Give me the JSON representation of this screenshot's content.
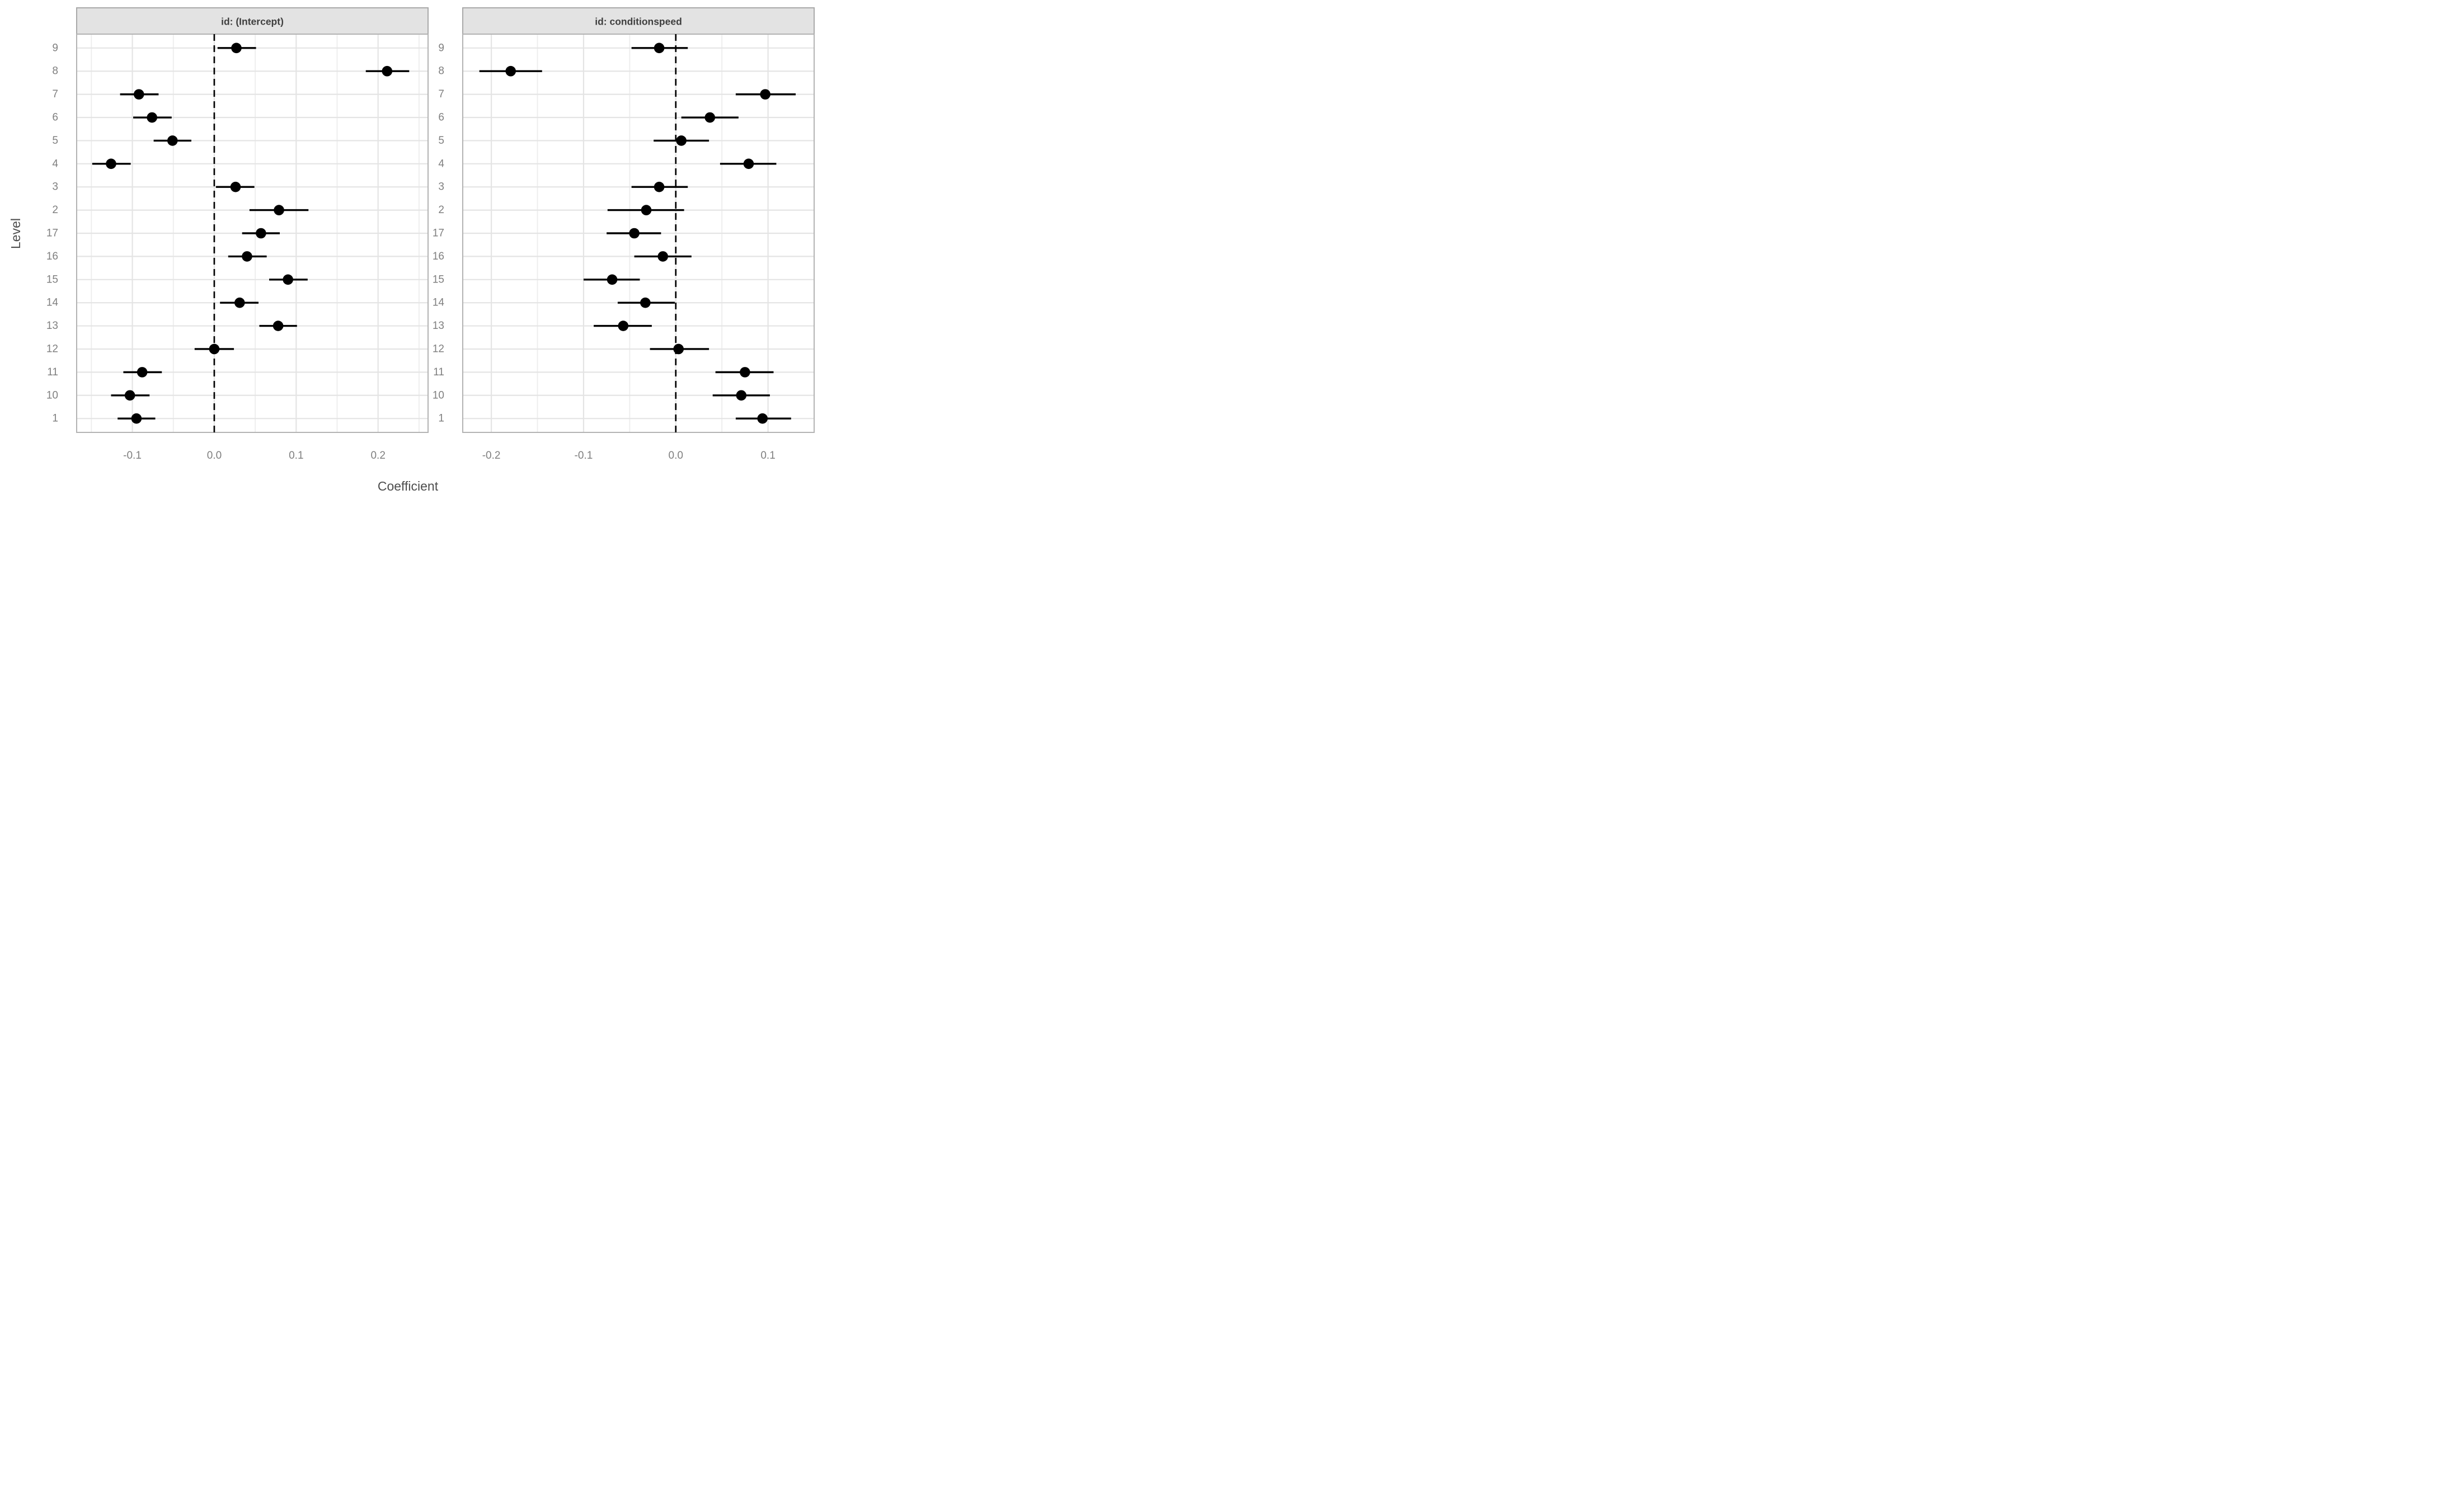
{
  "figure": {
    "xlabel": "Coefficient",
    "ylabel": "Level",
    "colors": {
      "background": "#ffffff",
      "strip_bg": "#e3e3e3",
      "strip_border": "#a9a9a9",
      "strip_text": "#3f3f3f",
      "panel_border": "#b3b3b3",
      "grid_major": "#e4e4e4",
      "grid_minor": "#ededed",
      "data": "#000000",
      "tick_text": "#7f7f7f",
      "axis_title": "#4d4d4d"
    },
    "chart_data": [
      {
        "type": "scatter",
        "title": "id: (Intercept)",
        "y_categories": [
          "9",
          "8",
          "7",
          "6",
          "5",
          "4",
          "3",
          "2",
          "17",
          "16",
          "15",
          "14",
          "13",
          "12",
          "11",
          "10",
          "1"
        ],
        "x_tick_labels": [
          "-0.1",
          "0.0",
          "0.1",
          "0.2"
        ],
        "x_ticks": [
          -0.1,
          0.0,
          0.1,
          0.2
        ],
        "x_minor": [
          -0.15,
          -0.05,
          0.05,
          0.15,
          0.25
        ],
        "xlim": [
          -0.168,
          0.261
        ],
        "zero_line": 0,
        "points": [
          {
            "level": "9",
            "est": 0.027,
            "lo": 0.004,
            "hi": 0.051
          },
          {
            "level": "8",
            "est": 0.211,
            "lo": 0.185,
            "hi": 0.238
          },
          {
            "level": "7",
            "est": -0.092,
            "lo": -0.115,
            "hi": -0.068
          },
          {
            "level": "6",
            "est": -0.076,
            "lo": -0.099,
            "hi": -0.052
          },
          {
            "level": "5",
            "est": -0.051,
            "lo": -0.074,
            "hi": -0.028
          },
          {
            "level": "4",
            "est": -0.126,
            "lo": -0.149,
            "hi": -0.102
          },
          {
            "level": "3",
            "est": 0.026,
            "lo": 0.002,
            "hi": 0.049
          },
          {
            "level": "2",
            "est": 0.079,
            "lo": 0.043,
            "hi": 0.115
          },
          {
            "level": "17",
            "est": 0.057,
            "lo": 0.034,
            "hi": 0.08
          },
          {
            "level": "16",
            "est": 0.04,
            "lo": 0.017,
            "hi": 0.064
          },
          {
            "level": "15",
            "est": 0.09,
            "lo": 0.067,
            "hi": 0.114
          },
          {
            "level": "14",
            "est": 0.031,
            "lo": 0.007,
            "hi": 0.054
          },
          {
            "level": "13",
            "est": 0.078,
            "lo": 0.055,
            "hi": 0.101
          },
          {
            "level": "12",
            "est": 0.0,
            "lo": -0.024,
            "hi": 0.024
          },
          {
            "level": "11",
            "est": -0.088,
            "lo": -0.111,
            "hi": -0.064
          },
          {
            "level": "10",
            "est": -0.103,
            "lo": -0.126,
            "hi": -0.079
          },
          {
            "level": "1",
            "est": -0.095,
            "lo": -0.118,
            "hi": -0.072
          }
        ]
      },
      {
        "type": "scatter",
        "title": "id: conditionspeed",
        "y_categories": [
          "9",
          "8",
          "7",
          "6",
          "5",
          "4",
          "3",
          "2",
          "17",
          "16",
          "15",
          "14",
          "13",
          "12",
          "11",
          "10",
          "1"
        ],
        "x_tick_labels": [
          "-0.2",
          "-0.1",
          "0.0",
          "0.1"
        ],
        "x_ticks": [
          -0.2,
          -0.1,
          0.0,
          0.1
        ],
        "x_minor": [
          -0.15,
          -0.05,
          0.05
        ],
        "xlim": [
          -0.231,
          0.15
        ],
        "zero_line": 0,
        "points": [
          {
            "level": "9",
            "est": -0.018,
            "lo": -0.048,
            "hi": 0.013
          },
          {
            "level": "8",
            "est": -0.179,
            "lo": -0.213,
            "hi": -0.145
          },
          {
            "level": "7",
            "est": 0.097,
            "lo": 0.065,
            "hi": 0.13
          },
          {
            "level": "6",
            "est": 0.037,
            "lo": 0.006,
            "hi": 0.068
          },
          {
            "level": "5",
            "est": 0.006,
            "lo": -0.024,
            "hi": 0.036
          },
          {
            "level": "4",
            "est": 0.079,
            "lo": 0.048,
            "hi": 0.109
          },
          {
            "level": "3",
            "est": -0.018,
            "lo": -0.048,
            "hi": 0.013
          },
          {
            "level": "2",
            "est": -0.032,
            "lo": -0.074,
            "hi": 0.009
          },
          {
            "level": "17",
            "est": -0.045,
            "lo": -0.075,
            "hi": -0.016
          },
          {
            "level": "16",
            "est": -0.014,
            "lo": -0.045,
            "hi": 0.017
          },
          {
            "level": "15",
            "est": -0.069,
            "lo": -0.1,
            "hi": -0.039
          },
          {
            "level": "14",
            "est": -0.033,
            "lo": -0.063,
            "hi": -0.001
          },
          {
            "level": "13",
            "est": -0.057,
            "lo": -0.089,
            "hi": -0.026
          },
          {
            "level": "12",
            "est": 0.003,
            "lo": -0.028,
            "hi": 0.036
          },
          {
            "level": "11",
            "est": 0.075,
            "lo": 0.043,
            "hi": 0.106
          },
          {
            "level": "10",
            "est": 0.071,
            "lo": 0.04,
            "hi": 0.102
          },
          {
            "level": "1",
            "est": 0.094,
            "lo": 0.065,
            "hi": 0.125
          }
        ]
      }
    ]
  }
}
